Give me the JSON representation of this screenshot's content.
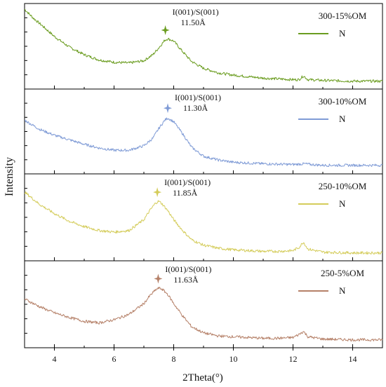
{
  "chart_data": {
    "type": "line",
    "xlabel": "2Theta(°)",
    "ylabel": "Intensity",
    "xlim": [
      3,
      15
    ],
    "xticks": [
      4,
      6,
      8,
      10,
      12,
      14
    ],
    "grid": false,
    "legend_position": "top-right",
    "panels": [
      {
        "title": "300-15%OM",
        "series_name": "N",
        "color": "#6a9c1f",
        "peak_label": "I(001)/S(001)",
        "d_spacing": "11.50Å",
        "peak_x": 7.72,
        "x": [
          3.0,
          3.3,
          3.6,
          4.0,
          4.5,
          5.0,
          5.5,
          6.0,
          6.5,
          7.0,
          7.3,
          7.5,
          7.7,
          7.8,
          8.0,
          8.3,
          8.6,
          9.0,
          9.5,
          10.0,
          10.5,
          11.0,
          11.5,
          12.0,
          12.2,
          12.35,
          12.5,
          13.0,
          14.0,
          15.0
        ],
        "y": [
          0.98,
          0.86,
          0.76,
          0.62,
          0.48,
          0.38,
          0.31,
          0.28,
          0.27,
          0.3,
          0.38,
          0.47,
          0.57,
          0.59,
          0.56,
          0.42,
          0.29,
          0.2,
          0.14,
          0.11,
          0.09,
          0.07,
          0.06,
          0.05,
          0.05,
          0.1,
          0.05,
          0.04,
          0.03,
          0.03
        ]
      },
      {
        "title": "300-10%OM",
        "series_name": "N",
        "color": "#7f9bd6",
        "peak_label": "I(001)/S(001)",
        "d_spacing": "11.30Å",
        "peak_x": 7.8,
        "x": [
          3.0,
          3.5,
          4.0,
          4.5,
          5.0,
          5.5,
          6.0,
          6.5,
          7.0,
          7.3,
          7.5,
          7.7,
          7.8,
          8.0,
          8.3,
          8.6,
          9.0,
          9.5,
          10.0,
          10.5,
          11.0,
          12.0,
          12.4,
          12.6,
          13.0,
          14.0,
          15.0
        ],
        "y": [
          0.64,
          0.52,
          0.44,
          0.38,
          0.32,
          0.27,
          0.24,
          0.24,
          0.3,
          0.4,
          0.53,
          0.64,
          0.67,
          0.62,
          0.46,
          0.28,
          0.16,
          0.11,
          0.08,
          0.07,
          0.06,
          0.05,
          0.06,
          0.05,
          0.04,
          0.04,
          0.04
        ]
      },
      {
        "title": "250-10%OM",
        "series_name": "N",
        "color": "#d4cc5a",
        "peak_label": "I(001)/S(001)",
        "d_spacing": "11.85Å",
        "peak_x": 7.45,
        "x": [
          3.0,
          3.5,
          4.0,
          4.5,
          5.0,
          5.5,
          6.0,
          6.5,
          7.0,
          7.2,
          7.4,
          7.5,
          7.6,
          7.8,
          8.0,
          8.3,
          8.6,
          9.0,
          9.5,
          10.0,
          10.5,
          11.0,
          11.5,
          12.0,
          12.2,
          12.35,
          12.5,
          13.0,
          14.0,
          15.0
        ],
        "y": [
          0.82,
          0.66,
          0.54,
          0.44,
          0.37,
          0.32,
          0.3,
          0.32,
          0.46,
          0.58,
          0.68,
          0.7,
          0.67,
          0.58,
          0.46,
          0.32,
          0.2,
          0.13,
          0.09,
          0.07,
          0.06,
          0.05,
          0.05,
          0.06,
          0.1,
          0.17,
          0.08,
          0.04,
          0.03,
          0.03
        ]
      },
      {
        "title": "250-5%OM",
        "series_name": "N",
        "color": "#b58068",
        "peak_label": "I(001)/S(001)",
        "d_spacing": "11.63Å",
        "peak_x": 7.48,
        "x": [
          3.0,
          3.5,
          4.0,
          4.5,
          5.0,
          5.5,
          6.0,
          6.5,
          7.0,
          7.2,
          7.4,
          7.5,
          7.6,
          7.8,
          8.0,
          8.3,
          8.6,
          9.0,
          9.5,
          10.0,
          10.5,
          11.0,
          11.5,
          12.0,
          12.2,
          12.35,
          12.5,
          13.0,
          14.0,
          15.0
        ],
        "y": [
          0.56,
          0.46,
          0.38,
          0.32,
          0.27,
          0.25,
          0.29,
          0.36,
          0.5,
          0.6,
          0.68,
          0.7,
          0.69,
          0.62,
          0.5,
          0.34,
          0.2,
          0.12,
          0.08,
          0.07,
          0.06,
          0.05,
          0.05,
          0.06,
          0.1,
          0.14,
          0.07,
          0.04,
          0.03,
          0.03
        ]
      }
    ]
  }
}
